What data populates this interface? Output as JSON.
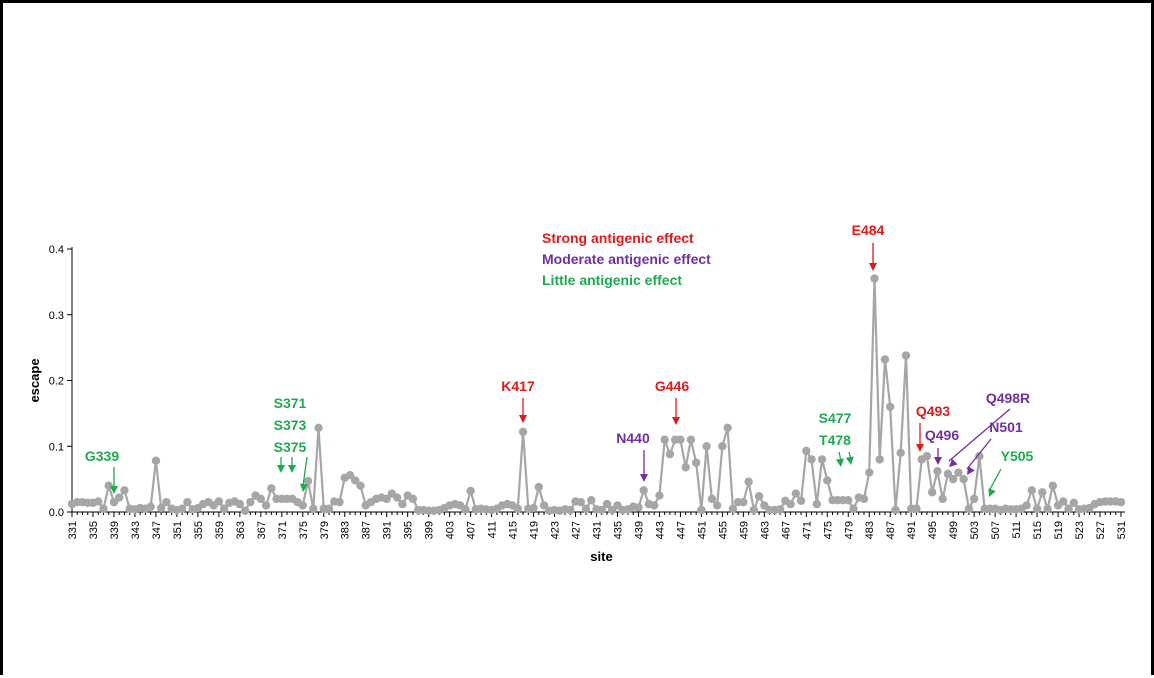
{
  "colors": {
    "strong": "#e31a1c",
    "moderate": "#7030a0",
    "little": "#1faa50",
    "series": "#a6a6a6"
  },
  "chart_data": {
    "type": "line",
    "title": "",
    "xlabel": "site",
    "ylabel": "escape",
    "xlim": [
      331,
      531
    ],
    "ylim": [
      0,
      0.4
    ],
    "yticks": [
      "0.0",
      "0.1",
      "0.2",
      "0.3",
      "0.4"
    ],
    "grid": false,
    "legend_placement": "top-center",
    "legend": [
      {
        "label": "Strong antigenic effect",
        "category": "strong"
      },
      {
        "label": "Moderate antigenic effect",
        "category": "moderate"
      },
      {
        "label": "Little antigenic effect",
        "category": "little"
      }
    ],
    "series": [
      {
        "x": [
          331,
          332,
          333,
          334,
          335,
          336,
          337,
          338,
          339,
          340,
          341,
          342,
          343,
          344,
          345,
          346,
          347,
          348,
          349,
          350,
          351,
          352,
          353,
          354,
          355,
          356,
          357,
          358,
          359,
          360,
          361,
          362,
          363,
          364,
          365,
          366,
          367,
          368,
          369,
          370,
          371,
          372,
          373,
          374,
          375,
          376,
          377,
          378,
          379,
          380,
          381,
          382,
          383,
          384,
          385,
          386,
          387,
          388,
          389,
          390,
          391,
          392,
          393,
          394,
          395,
          396,
          397,
          398,
          399,
          400,
          401,
          402,
          403,
          404,
          405,
          406,
          407,
          408,
          409,
          410,
          411,
          412,
          413,
          414,
          415,
          416,
          417,
          418,
          419,
          420,
          421,
          422,
          423,
          424,
          425,
          426,
          427,
          428,
          429,
          430,
          431,
          432,
          433,
          434,
          435,
          436,
          437,
          438,
          439,
          440,
          441,
          442,
          443,
          444,
          445,
          446,
          447,
          448,
          449,
          450,
          451,
          452,
          453,
          454,
          455,
          456,
          457,
          458,
          459,
          460,
          461,
          462,
          463,
          464,
          465,
          466,
          467,
          468,
          469,
          470,
          471,
          472,
          473,
          474,
          475,
          476,
          477,
          478,
          479,
          480,
          481,
          482,
          483,
          484,
          485,
          486,
          487,
          488,
          489,
          490,
          491,
          492,
          493,
          494,
          495,
          496,
          497,
          498,
          499,
          500,
          501,
          502,
          503,
          504,
          505,
          506,
          507,
          508,
          509,
          510,
          511,
          512,
          513,
          514,
          515,
          516,
          517,
          518,
          519,
          520,
          521,
          522,
          523,
          524,
          525,
          526,
          527,
          528,
          529,
          530,
          531
        ],
        "y": [
          0.012,
          0.015,
          0.015,
          0.014,
          0.014,
          0.016,
          0.005,
          0.04,
          0.015,
          0.022,
          0.033,
          0.005,
          0.004,
          0.006,
          0.005,
          0.008,
          0.078,
          0.006,
          0.015,
          0.005,
          0.003,
          0.005,
          0.015,
          0.004,
          0.006,
          0.012,
          0.015,
          0.01,
          0.016,
          0.005,
          0.014,
          0.016,
          0.012,
          0.002,
          0.015,
          0.025,
          0.02,
          0.01,
          0.036,
          0.02,
          0.02,
          0.02,
          0.02,
          0.015,
          0.01,
          0.047,
          0.005,
          0.128,
          0.005,
          0.005,
          0.016,
          0.015,
          0.052,
          0.056,
          0.048,
          0.04,
          0.01,
          0.015,
          0.02,
          0.022,
          0.02,
          0.028,
          0.022,
          0.012,
          0.025,
          0.02,
          0.003,
          0.003,
          0.002,
          0.002,
          0.003,
          0.006,
          0.01,
          0.012,
          0.01,
          0.004,
          0.032,
          0.004,
          0.005,
          0.004,
          0.003,
          0.005,
          0.01,
          0.012,
          0.01,
          0.005,
          0.122,
          0.005,
          0.006,
          0.038,
          0.01,
          0.002,
          0.003,
          0.002,
          0.004,
          0.003,
          0.016,
          0.015,
          0.005,
          0.018,
          0.004,
          0.003,
          0.012,
          0.003,
          0.01,
          0.003,
          0.004,
          0.008,
          0.007,
          0.033,
          0.012,
          0.01,
          0.025,
          0.11,
          0.088,
          0.11,
          0.11,
          0.068,
          0.11,
          0.075,
          0.003,
          0.1,
          0.02,
          0.01,
          0.1,
          0.128,
          0.005,
          0.015,
          0.015,
          0.046,
          0.003,
          0.024,
          0.01,
          0.003,
          0.003,
          0.004,
          0.017,
          0.012,
          0.028,
          0.017,
          0.093,
          0.08,
          0.012,
          0.08,
          0.048,
          0.018,
          0.018,
          0.018,
          0.018,
          0.005,
          0.022,
          0.02,
          0.06,
          0.355,
          0.08,
          0.232,
          0.16,
          0.003,
          0.09,
          0.238,
          0.005,
          0.005,
          0.08,
          0.085,
          0.03,
          0.062,
          0.02,
          0.058,
          0.05,
          0.06,
          0.05,
          0.005,
          0.02,
          0.085,
          0.005,
          0.005,
          0.005,
          0.003,
          0.005,
          0.004,
          0.004,
          0.005,
          0.01,
          0.033,
          0.005,
          0.03,
          0.005,
          0.04,
          0.01,
          0.016,
          0.005,
          0.014,
          0.004,
          0.005,
          0.006,
          0.012,
          0.015,
          0.016,
          0.016,
          0.016,
          0.015
        ]
      }
    ],
    "annotations": [
      {
        "lines": [
          "E484"
        ],
        "site": 484,
        "category": "strong"
      },
      {
        "lines": [
          "K417"
        ],
        "site": 417,
        "category": "strong"
      },
      {
        "lines": [
          "G446"
        ],
        "site": 446,
        "category": "strong"
      },
      {
        "lines": [
          "Q493"
        ],
        "site": 493,
        "category": "strong"
      },
      {
        "lines": [
          "N440"
        ],
        "site": 440,
        "category": "moderate"
      },
      {
        "lines": [
          "Q496"
        ],
        "site": 496,
        "category": "moderate"
      },
      {
        "lines": [
          "Q498R"
        ],
        "site": 498,
        "category": "moderate"
      },
      {
        "lines": [
          "N501"
        ],
        "site": 501,
        "category": "moderate"
      },
      {
        "lines": [
          "G339"
        ],
        "site": 339,
        "category": "little"
      },
      {
        "lines": [
          "S371",
          "S373",
          "S375"
        ],
        "sites": [
          371,
          373,
          375
        ],
        "category": "little"
      },
      {
        "lines": [
          "S477",
          "T478"
        ],
        "sites": [
          477,
          478
        ],
        "category": "little"
      },
      {
        "lines": [
          "Y505"
        ],
        "site": 505,
        "category": "little"
      }
    ]
  }
}
